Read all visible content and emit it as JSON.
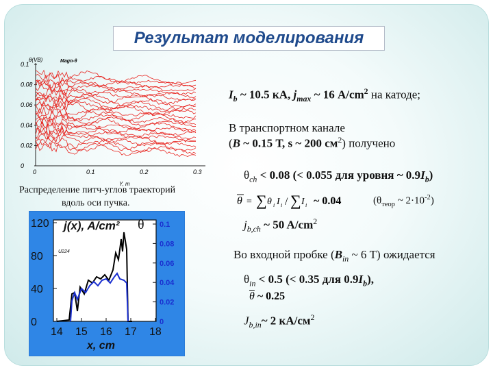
{
  "slide": {
    "title": "Результат моделирования",
    "caption_line1": "Распределение питч-углов траекторий",
    "caption_line2": "вдоль оси пучка."
  },
  "top_chart": {
    "y_title": "θ(VB)",
    "legend": "Magn-θ",
    "y_ticks": [
      "0.1",
      "0.08",
      "0.06",
      "0.04",
      "0.02",
      "0"
    ],
    "x_ticks": [
      "0",
      "0.1",
      "0.2",
      "0.3"
    ],
    "x_title": "Y, m"
  },
  "bottom_chart": {
    "y_title": "j(x), A/cm²",
    "theta_label": "θ",
    "annotation": "U224",
    "left_ticks": [
      "120",
      "80",
      "40",
      "0"
    ],
    "right_ticks": [
      "0.1",
      "0.08",
      "0.06",
      "0.04",
      "0.02",
      "0"
    ],
    "x_ticks": [
      "14",
      "15",
      "16",
      "17",
      "18"
    ],
    "x_title": "x, cm"
  },
  "text": {
    "line1_ib": "I",
    "line1_ib_sub": "b",
    "line1_a": " ~ 10.5 кА,  ",
    "line1_j": "j",
    "line1_jsub": "max",
    "line1_b": " ~ 16 А/cm",
    "line1_c": " на катоде;",
    "line2": "В транспортном канале",
    "line3_a": "(",
    "line3_B": "B",
    "line3_b": " ~ 0.15 Т, s ~ 200 см",
    "line3_c": ") получено",
    "theta_ch_a": "θ",
    "theta_ch_sub": "ch",
    "theta_ch_b": " < 0.08 (< 0.055 для уровня ~ 0.9",
    "theta_ch_Ib": "I",
    "theta_ch_Ibsub": "b",
    "theta_ch_c": ")",
    "formula_result": "~ 0.04",
    "formula_theor": "(θ",
    "formula_theor_sub": "теор",
    "formula_theor_b": " ~ 2·10",
    "formula_theor_exp": "-2",
    "formula_theor_c": ")",
    "jbch_j": "j",
    "jbch_sub": "b,ch",
    "jbch_b": " ~ 50 A/cm",
    "inlet_a": "Во входной пробке (",
    "inlet_B": "B",
    "inlet_sub": "in",
    "inlet_b": " ~ 6 Т) ожидается",
    "theta_in_a": "θ",
    "theta_in_sub": "in",
    "theta_in_b": " < 0.5 (< 0.35 для 0.9",
    "theta_in_Ib": "I",
    "theta_in_Ibsub": "b",
    "theta_in_c": "),",
    "theta_in_formula": "~ 0.25",
    "jbin_J": "J",
    "jbin_sub": "b,in",
    "jbin_b": "~ 2 кА/см",
    "sup2": "2"
  },
  "colors": {
    "title": "#1f4a8c",
    "red_curves": "#e8231e",
    "j_curve": "#000000",
    "theta_curve": "#1a2fd0",
    "bottom_bg": "#ffffff",
    "bottom_border": "#2a7bd8"
  }
}
